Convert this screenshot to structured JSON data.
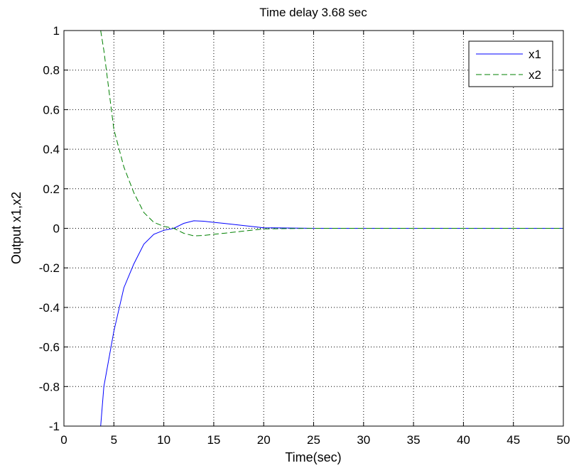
{
  "chart_data": {
    "type": "line",
    "title": "Time delay 3.68 sec",
    "xlabel": "Time(sec)",
    "ylabel": "Output x1,x2",
    "xlim": [
      0,
      50
    ],
    "ylim": [
      -1,
      1
    ],
    "xticks": [
      0,
      5,
      10,
      15,
      20,
      25,
      30,
      35,
      40,
      45,
      50
    ],
    "yticks": [
      -1,
      -0.8,
      -0.6,
      -0.4,
      -0.2,
      0,
      0.2,
      0.4,
      0.6,
      0.8,
      1
    ],
    "xtick_labels": [
      "0",
      "5",
      "10",
      "15",
      "20",
      "25",
      "30",
      "35",
      "40",
      "45",
      "50"
    ],
    "ytick_labels": [
      "-1",
      "-0.8",
      "-0.6",
      "-0.4",
      "-0.2",
      "0",
      "0.2",
      "0.4",
      "0.6",
      "0.8",
      "1"
    ],
    "grid": true,
    "legend_position": "top-right",
    "series": [
      {
        "name": "x1",
        "color": "#0000ff",
        "style": "solid",
        "x": [
          3.68,
          4,
          5,
          6,
          7,
          8,
          9,
          10,
          11,
          12,
          13,
          14,
          15,
          16,
          18,
          20,
          25,
          30,
          40,
          50
        ],
        "y": [
          -1.0,
          -0.8,
          -0.52,
          -0.3,
          -0.18,
          -0.08,
          -0.03,
          -0.01,
          0.0,
          0.025,
          0.038,
          0.036,
          0.03,
          0.025,
          0.014,
          0.003,
          0.0,
          0.0,
          0.0,
          0.0
        ]
      },
      {
        "name": "x2",
        "color": "#008000",
        "style": "dashed",
        "x": [
          3.68,
          4,
          5,
          6,
          7,
          8,
          9,
          10,
          11,
          12,
          13,
          14,
          15,
          16,
          18,
          20,
          25,
          30,
          40,
          50
        ],
        "y": [
          1.0,
          0.9,
          0.5,
          0.31,
          0.18,
          0.08,
          0.03,
          0.01,
          0.0,
          -0.025,
          -0.038,
          -0.036,
          -0.03,
          -0.025,
          -0.014,
          -0.003,
          0.0,
          0.0,
          0.0,
          0.0
        ]
      }
    ]
  }
}
